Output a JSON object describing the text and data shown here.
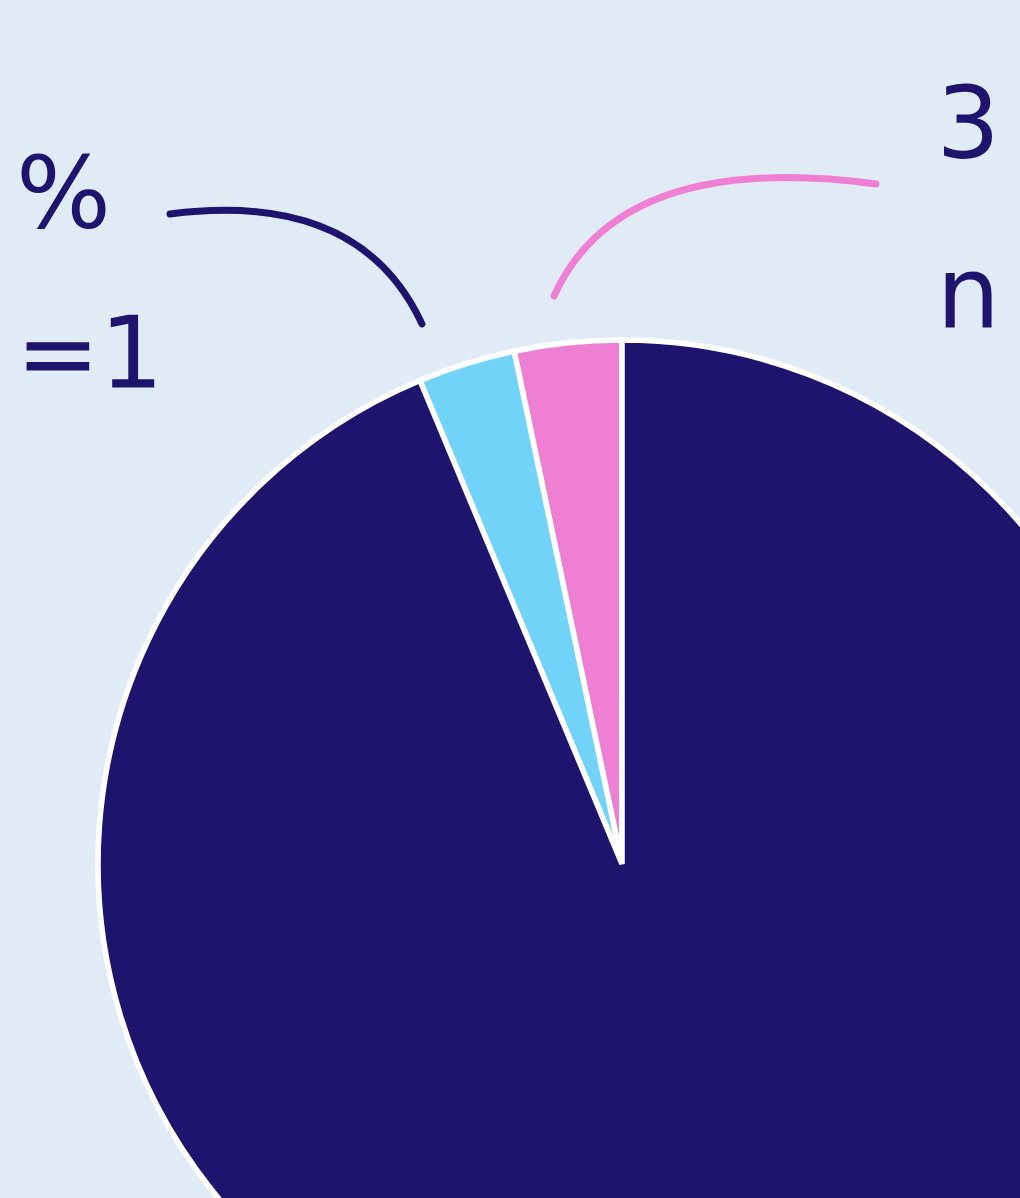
{
  "chart_data": {
    "type": "pie",
    "categories": [
      null,
      null,
      null
    ],
    "values": [
      3.3,
      3.0,
      93.7
    ],
    "colors": [
      "#ef7fd3",
      "#72d3f9",
      "#1e146e"
    ],
    "annotations": [
      "%",
      "=1",
      "3",
      "n"
    ]
  }
}
